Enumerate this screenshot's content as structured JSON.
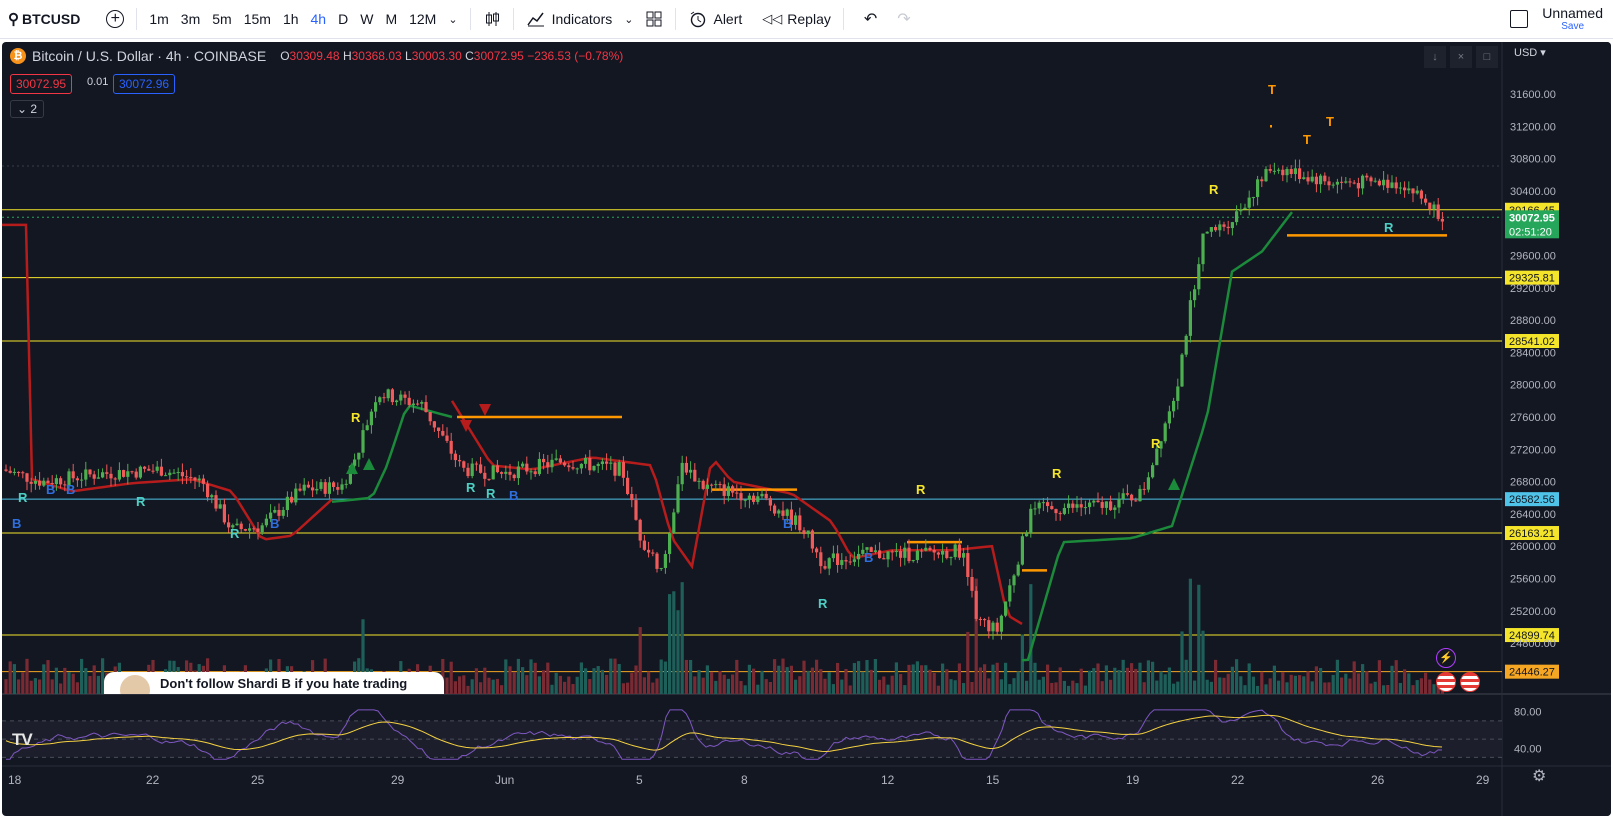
{
  "toolbar": {
    "symbol": "BTCUSD",
    "intervals": [
      "1m",
      "3m",
      "5m",
      "15m",
      "1h",
      "4h",
      "D",
      "W",
      "M",
      "12M"
    ],
    "active_interval": "4h",
    "indicators_label": "Indicators",
    "alert_label": "Alert",
    "replay_label": "Replay",
    "layout_name": "Unnamed",
    "save_label": "Save"
  },
  "legend": {
    "title": "Bitcoin / U.S. Dollar · 4h · COINBASE",
    "coin_glyph": "₿",
    "open": "30309.48",
    "high": "30368.03",
    "low": "30003.30",
    "close": "30072.95",
    "change": "−236.53 (−0.78%)",
    "bid": "30072.95",
    "spread": "0.01",
    "ask": "30072.96",
    "collapse_count": "2"
  },
  "currency": "USD",
  "price_axis": {
    "ticks": [
      "31600.00",
      "31200.00",
      "30800.00",
      "30400.00",
      "29600.00",
      "29200.00",
      "28800.00",
      "28400.00",
      "28000.00",
      "27600.00",
      "27200.00",
      "26800.00",
      "26400.00",
      "26000.00",
      "25600.00",
      "25200.00",
      "24800.00"
    ]
  },
  "levels": [
    {
      "label": "30166.45",
      "price": 30166.45,
      "color": "#f5e52a"
    },
    {
      "label": "29325.81",
      "price": 29325.81,
      "color": "#f5e52a"
    },
    {
      "label": "28541.02",
      "price": 28541.02,
      "color": "#f5e52a"
    },
    {
      "label": "26582.56",
      "price": 26582.56,
      "color": "#4fc3e8"
    },
    {
      "label": "26163.21",
      "price": 26163.21,
      "color": "#f5e52a"
    },
    {
      "label": "24899.74",
      "price": 24899.74,
      "color": "#f5e52a"
    },
    {
      "label": "24446.27",
      "price": 24446.27,
      "color": "#f5a623"
    }
  ],
  "last_price": {
    "label": "30072.95",
    "countdown": "02:51:20",
    "color": "#26a65b"
  },
  "rsi": {
    "ticks": [
      "80.00",
      "40.00"
    ]
  },
  "time_axis": {
    "labels": [
      "18",
      "22",
      "25",
      "29",
      "Jun",
      "5",
      "8",
      "12",
      "15",
      "19",
      "22",
      "26",
      "29"
    ]
  },
  "banner_text": "Don't follow Shardi B if you hate trading",
  "logo_text": "TV",
  "colors": {
    "up": "#4caf50",
    "down": "#f05a5a",
    "accent": "#2962ff",
    "background": "#131722"
  }
}
